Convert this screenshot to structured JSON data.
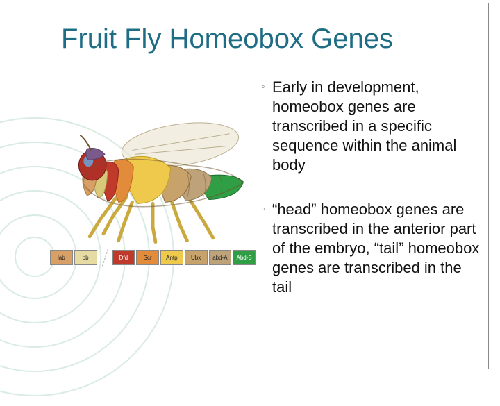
{
  "title": "Fruit Fly Homeobox Genes",
  "title_color": "#1e6d84",
  "background_color": "#ffffff",
  "decoration_circle_color": "#d9ebe3",
  "bullets": [
    "Early in development, homeobox genes are transcribed in a specific sequence within the animal body",
    " “head” homeobox genes are transcribed in the anterior part of the embryo,  “tail” homeobox genes are transcribed in the tail"
  ],
  "bullet_marker": "◦",
  "bullet_fontsize": 22,
  "fly": {
    "description": "lateral view of Drosophila colored by Hox gene expression domains",
    "segments": [
      {
        "name": "lab",
        "color": "#d9a066"
      },
      {
        "name": "pb",
        "color": "#d7c87a"
      },
      {
        "name": "Dfd",
        "color": "#c03a2b"
      },
      {
        "name": "Scr",
        "color": "#e28b3a"
      },
      {
        "name": "Antp",
        "color": "#efc94c"
      },
      {
        "name": "Ubx",
        "color": "#c7a36b"
      },
      {
        "name": "abd-A",
        "color": "#bda27a"
      },
      {
        "name": "Abd-B",
        "color": "#2f9e44"
      }
    ],
    "body_outline": "#6b4f2a",
    "eye_color": "#b03028",
    "eye_highlight": "#6aa5d8",
    "wing_color": "#e9e3cf",
    "wing_opacity": 0.6,
    "leg_color": "#e2c24a"
  },
  "gene_bar": {
    "items": [
      {
        "label": "lab",
        "bg": "#d9a066"
      },
      {
        "label": "pb",
        "bg": "#e6dca3"
      },
      {
        "label": "Dfd",
        "bg": "#c03a2b"
      },
      {
        "label": "Scr",
        "bg": "#e28b3a"
      },
      {
        "label": "Antp",
        "bg": "#efc94c"
      },
      {
        "label": "Ubx",
        "bg": "#c7a36b"
      },
      {
        "label": "abd-A",
        "bg": "#bda27a"
      },
      {
        "label": "Abd-B",
        "bg": "#2f9e44"
      }
    ],
    "gap_after_index": 1,
    "border_color": "#888888",
    "label_fontsize": 8
  }
}
